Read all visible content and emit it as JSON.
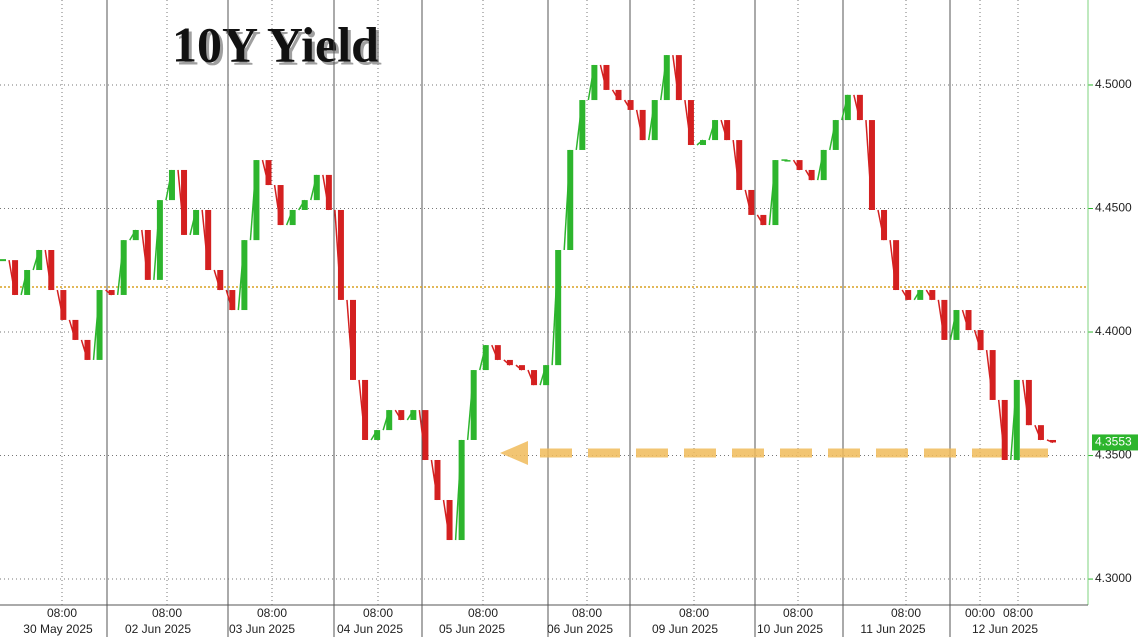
{
  "chart_data": {
    "type": "candlestick",
    "title": "10Y Yield",
    "series": [
      {
        "name": "10Y Yield",
        "up_color": "#2db52d",
        "down_color": "#d42020",
        "values": [
          4.4291,
          4.415,
          4.4251,
          4.4332,
          4.417,
          4.4049,
          4.3968,
          4.3887,
          4.417,
          4.415,
          4.4372,
          4.4413,
          4.4211,
          4.4534,
          4.4656,
          4.4393,
          4.4494,
          4.4251,
          4.417,
          4.4089,
          4.4372,
          4.4696,
          4.4595,
          4.4433,
          4.4494,
          4.4534,
          4.4636,
          4.4494,
          4.413,
          4.3806,
          4.3563,
          4.3603,
          4.3684,
          4.3644,
          4.3684,
          4.3482,
          4.332,
          4.3158,
          4.3563,
          4.3846,
          4.3947,
          4.3887,
          4.3866,
          4.3846,
          4.3785,
          4.3866,
          4.4332,
          4.4737,
          4.4939,
          4.5081,
          4.498,
          4.4939,
          4.4899,
          4.4777,
          4.4939,
          4.5121,
          4.4939,
          4.4757,
          4.4777,
          4.4858,
          4.4777,
          4.4575,
          4.4474,
          4.4433,
          4.4696,
          4.4696,
          4.4656,
          4.4615,
          4.4737,
          4.4858,
          4.496,
          4.4858,
          4.4494,
          4.4372,
          4.417,
          4.413,
          4.417,
          4.413,
          4.3968,
          4.4089,
          4.4008,
          4.3927,
          4.3725,
          4.3482,
          4.3806,
          4.3623,
          4.3563,
          4.3553
        ]
      }
    ],
    "last_value": 4.3553,
    "last_value_label": "4.3553",
    "reference_line": 4.4182,
    "ylim": [
      4.2895,
      4.5344
    ],
    "yticks": [
      {
        "value": 4.3,
        "label": "4.3000"
      },
      {
        "value": 4.35,
        "label": "4.3500"
      },
      {
        "value": 4.4,
        "label": "4.4000"
      },
      {
        "value": 4.45,
        "label": "4.4500"
      },
      {
        "value": 4.5,
        "label": "4.5000"
      }
    ],
    "time_labels": [
      "08:00",
      "08:00",
      "08:00",
      "08:00",
      "08:00",
      "08:00",
      "08:00",
      "08:00",
      "08:00",
      "00:00",
      "08:00"
    ],
    "date_labels": [
      "30 May 2025",
      "02 Jun 2025",
      "03 Jun 2025",
      "04 Jun 2025",
      "05 Jun 2025",
      "06 Jun 2025",
      "09 Jun 2025",
      "10 Jun 2025",
      "11 Jun 2025",
      "12 Jun 2025"
    ],
    "grid": true
  }
}
